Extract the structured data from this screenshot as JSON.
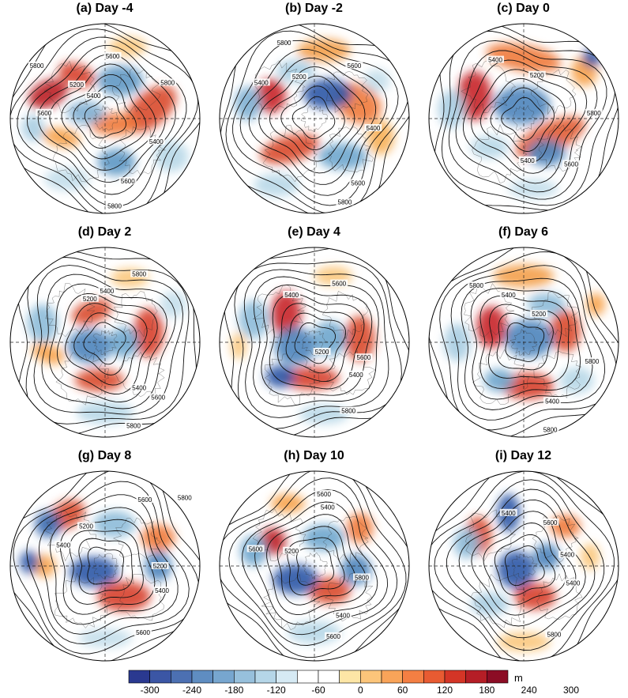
{
  "panels": [
    {
      "title": "(a) Day -4",
      "contour_labels": [
        {
          "t": "5800",
          "p": [
            0.14,
            0.22
          ]
        },
        {
          "t": "5600",
          "p": [
            0.54,
            0.17
          ]
        },
        {
          "t": "5200",
          "p": [
            0.35,
            0.32
          ]
        },
        {
          "t": "5400",
          "p": [
            0.44,
            0.38
          ]
        },
        {
          "t": "5800",
          "p": [
            0.83,
            0.31
          ]
        },
        {
          "t": "5600",
          "p": [
            0.18,
            0.47
          ]
        },
        {
          "t": "5400",
          "p": [
            0.77,
            0.62
          ]
        },
        {
          "t": "5600",
          "p": [
            0.62,
            0.83
          ]
        },
        {
          "t": "5800",
          "p": [
            0.55,
            0.96
          ]
        }
      ],
      "blobs": [
        [
          0.2,
          0.37,
          0.11,
          0.07,
          -25,
          "#ba1e24"
        ],
        [
          0.35,
          0.27,
          0.1,
          0.06,
          20,
          "#d7402b"
        ],
        [
          0.74,
          0.45,
          0.16,
          0.09,
          -40,
          "#d94a2c"
        ],
        [
          0.55,
          0.53,
          0.13,
          0.06,
          0,
          "#ef7a3c"
        ],
        [
          0.27,
          0.6,
          0.1,
          0.05,
          10,
          "#f7a24b"
        ],
        [
          0.4,
          0.47,
          0.1,
          0.06,
          0,
          "#7faed0"
        ],
        [
          0.58,
          0.3,
          0.12,
          0.08,
          0,
          "#5f98c4"
        ],
        [
          0.56,
          0.73,
          0.1,
          0.07,
          0,
          "#5c97c4"
        ],
        [
          0.12,
          0.55,
          0.06,
          0.07,
          0,
          "#a9cde2"
        ],
        [
          0.85,
          0.7,
          0.09,
          0.08,
          0,
          "#b8d8e8"
        ],
        [
          0.3,
          0.82,
          0.12,
          0.06,
          0,
          "#c3deeb"
        ],
        [
          0.62,
          0.12,
          0.1,
          0.05,
          0,
          "#fbc77b"
        ]
      ]
    },
    {
      "title": "(b) Day -2",
      "contour_labels": [
        {
          "t": "5800",
          "p": [
            0.34,
            0.1
          ]
        },
        {
          "t": "5600",
          "p": [
            0.71,
            0.22
          ]
        },
        {
          "t": "5400",
          "p": [
            0.22,
            0.31
          ]
        },
        {
          "t": "5200",
          "p": [
            0.42,
            0.28
          ]
        },
        {
          "t": "5400",
          "p": [
            0.81,
            0.55
          ]
        },
        {
          "t": "5600",
          "p": [
            0.73,
            0.84
          ]
        },
        {
          "t": "5800",
          "p": [
            0.66,
            0.94
          ]
        }
      ],
      "blobs": [
        [
          0.27,
          0.38,
          0.08,
          0.09,
          0,
          "#c7262a"
        ],
        [
          0.37,
          0.66,
          0.16,
          0.07,
          -15,
          "#d94a2c"
        ],
        [
          0.73,
          0.42,
          0.13,
          0.1,
          30,
          "#ef7a3c"
        ],
        [
          0.55,
          0.14,
          0.14,
          0.06,
          0,
          "#f3a04b"
        ],
        [
          0.85,
          0.6,
          0.07,
          0.09,
          0,
          "#f7b057"
        ],
        [
          0.57,
          0.37,
          0.13,
          0.08,
          0,
          "#2f57a6"
        ],
        [
          0.15,
          0.42,
          0.07,
          0.09,
          0,
          "#7fb0d3"
        ],
        [
          0.65,
          0.7,
          0.13,
          0.07,
          0,
          "#6ea6cd"
        ],
        [
          0.4,
          0.25,
          0.1,
          0.06,
          0,
          "#a9cde2"
        ],
        [
          0.3,
          0.85,
          0.12,
          0.06,
          0,
          "#b8d8e8"
        ],
        [
          0.83,
          0.3,
          0.07,
          0.06,
          0,
          "#c3deeb"
        ]
      ]
    },
    {
      "title": "(c) Day 0",
      "contour_labels": [
        {
          "t": "5400",
          "p": [
            0.35,
            0.19
          ]
        },
        {
          "t": "5200",
          "p": [
            0.57,
            0.27
          ]
        },
        {
          "t": "5800",
          "p": [
            0.87,
            0.47
          ]
        },
        {
          "t": "5600",
          "p": [
            0.75,
            0.74
          ]
        },
        {
          "t": "5400",
          "p": [
            0.52,
            0.72
          ]
        }
      ],
      "blobs": [
        [
          0.24,
          0.38,
          0.09,
          0.13,
          0,
          "#c7262a"
        ],
        [
          0.64,
          0.6,
          0.2,
          0.08,
          -25,
          "#e15d33"
        ],
        [
          0.5,
          0.18,
          0.2,
          0.07,
          10,
          "#ef7a3c"
        ],
        [
          0.82,
          0.25,
          0.07,
          0.08,
          0,
          "#f7a24b"
        ],
        [
          0.49,
          0.43,
          0.15,
          0.1,
          0,
          "#4d84bb"
        ],
        [
          0.62,
          0.68,
          0.1,
          0.07,
          0,
          "#4d84bb"
        ],
        [
          0.86,
          0.18,
          0.05,
          0.05,
          0,
          "#2f57a6"
        ],
        [
          0.12,
          0.45,
          0.07,
          0.1,
          0,
          "#a9cde2"
        ],
        [
          0.32,
          0.65,
          0.1,
          0.06,
          0,
          "#b8d8e8"
        ],
        [
          0.55,
          0.87,
          0.13,
          0.05,
          0,
          "#c3deeb"
        ]
      ]
    },
    {
      "title": "(d) Day 2",
      "contour_labels": [
        {
          "t": "5800",
          "p": [
            0.68,
            0.14
          ]
        },
        {
          "t": "5400",
          "p": [
            0.51,
            0.23
          ]
        },
        {
          "t": "5200",
          "p": [
            0.42,
            0.27
          ]
        },
        {
          "t": "5400",
          "p": [
            0.68,
            0.74
          ]
        },
        {
          "t": "5600",
          "p": [
            0.78,
            0.79
          ]
        },
        {
          "t": "5800",
          "p": [
            0.65,
            0.94
          ]
        }
      ],
      "blobs": [
        [
          0.43,
          0.34,
          0.11,
          0.06,
          -20,
          "#d94a2c"
        ],
        [
          0.73,
          0.45,
          0.08,
          0.13,
          0,
          "#d7402b"
        ],
        [
          0.47,
          0.7,
          0.13,
          0.06,
          0,
          "#d94a2c"
        ],
        [
          0.2,
          0.56,
          0.09,
          0.05,
          20,
          "#f7a24b"
        ],
        [
          0.63,
          0.16,
          0.1,
          0.05,
          0,
          "#fbc77b"
        ],
        [
          0.42,
          0.52,
          0.12,
          0.09,
          0,
          "#4d84bb"
        ],
        [
          0.6,
          0.5,
          0.08,
          0.08,
          0,
          "#6ea6cd"
        ],
        [
          0.17,
          0.4,
          0.08,
          0.1,
          0,
          "#8dbbd9"
        ],
        [
          0.5,
          0.87,
          0.15,
          0.06,
          0,
          "#b8d8e8"
        ],
        [
          0.86,
          0.3,
          0.07,
          0.07,
          0,
          "#c3deeb"
        ]
      ]
    },
    {
      "title": "(e) Day 4",
      "contour_labels": [
        {
          "t": "5600",
          "p": [
            0.63,
            0.19
          ]
        },
        {
          "t": "5400",
          "p": [
            0.38,
            0.25
          ]
        },
        {
          "t": "5200",
          "p": [
            0.54,
            0.55
          ]
        },
        {
          "t": "5400",
          "p": [
            0.72,
            0.67
          ]
        },
        {
          "t": "5600",
          "p": [
            0.76,
            0.58
          ]
        },
        {
          "t": "5800",
          "p": [
            0.68,
            0.86
          ]
        }
      ],
      "blobs": [
        [
          0.35,
          0.35,
          0.08,
          0.12,
          0,
          "#c7262a"
        ],
        [
          0.74,
          0.48,
          0.08,
          0.12,
          0,
          "#d94a2c"
        ],
        [
          0.48,
          0.69,
          0.15,
          0.06,
          0,
          "#d7402b"
        ],
        [
          0.6,
          0.15,
          0.1,
          0.05,
          0,
          "#fbc77b"
        ],
        [
          0.1,
          0.52,
          0.04,
          0.07,
          0,
          "#fbc77b"
        ],
        [
          0.4,
          0.52,
          0.11,
          0.1,
          0,
          "#4d84bb"
        ],
        [
          0.32,
          0.68,
          0.08,
          0.06,
          0,
          "#2f57a6"
        ],
        [
          0.58,
          0.48,
          0.09,
          0.09,
          0,
          "#6ea6cd"
        ],
        [
          0.18,
          0.38,
          0.08,
          0.1,
          0,
          "#8dbbd9"
        ],
        [
          0.55,
          0.88,
          0.13,
          0.05,
          0,
          "#b8d8e8"
        ]
      ]
    },
    {
      "title": "(f) Day 6",
      "contour_labels": [
        {
          "t": "5800",
          "p": [
            0.25,
            0.2
          ]
        },
        {
          "t": "5400",
          "p": [
            0.42,
            0.25
          ]
        },
        {
          "t": "5200",
          "p": [
            0.58,
            0.35
          ]
        },
        {
          "t": "5400",
          "p": [
            0.65,
            0.81
          ]
        },
        {
          "t": "5800",
          "p": [
            0.86,
            0.6
          ]
        },
        {
          "t": "5800",
          "p": [
            0.64,
            0.96
          ]
        }
      ],
      "blobs": [
        [
          0.33,
          0.42,
          0.08,
          0.11,
          0,
          "#c7262a"
        ],
        [
          0.72,
          0.44,
          0.08,
          0.11,
          0,
          "#d94a2c"
        ],
        [
          0.52,
          0.73,
          0.14,
          0.07,
          0,
          "#d7402b"
        ],
        [
          0.5,
          0.15,
          0.16,
          0.06,
          0,
          "#f3a04b"
        ],
        [
          0.88,
          0.3,
          0.05,
          0.06,
          0,
          "#f7a24b"
        ],
        [
          0.53,
          0.48,
          0.13,
          0.1,
          0,
          "#4d84bb"
        ],
        [
          0.37,
          0.7,
          0.08,
          0.06,
          0,
          "#6ea6cd"
        ],
        [
          0.62,
          0.3,
          0.1,
          0.06,
          0,
          "#8dbbd9"
        ],
        [
          0.15,
          0.5,
          0.07,
          0.1,
          0,
          "#a9cde2"
        ],
        [
          0.78,
          0.7,
          0.09,
          0.07,
          0,
          "#b8d8e8"
        ]
      ]
    },
    {
      "title": "(g) Day 8",
      "contour_labels": [
        {
          "t": "5800",
          "p": [
            0.92,
            0.14
          ]
        },
        {
          "t": "5600",
          "p": [
            0.71,
            0.15
          ]
        },
        {
          "t": "5400",
          "p": [
            0.28,
            0.39
          ]
        },
        {
          "t": "5200",
          "p": [
            0.4,
            0.29
          ]
        },
        {
          "t": "5200",
          "p": [
            0.79,
            0.5
          ]
        },
        {
          "t": "5400",
          "p": [
            0.8,
            0.63
          ]
        },
        {
          "t": "5600",
          "p": [
            0.7,
            0.85
          ]
        }
      ],
      "blobs": [
        [
          0.3,
          0.23,
          0.1,
          0.07,
          -30,
          "#d94a2c"
        ],
        [
          0.6,
          0.66,
          0.14,
          0.08,
          0,
          "#d7402b"
        ],
        [
          0.78,
          0.35,
          0.09,
          0.07,
          0,
          "#ef7a3c"
        ],
        [
          0.18,
          0.5,
          0.06,
          0.06,
          0,
          "#f7a24b"
        ],
        [
          0.2,
          0.28,
          0.07,
          0.07,
          0,
          "#3a6bb0"
        ],
        [
          0.1,
          0.48,
          0.05,
          0.06,
          0,
          "#2f57a6"
        ],
        [
          0.44,
          0.53,
          0.13,
          0.08,
          0,
          "#2f57a6"
        ],
        [
          0.78,
          0.5,
          0.07,
          0.08,
          0,
          "#4d84bb"
        ],
        [
          0.55,
          0.28,
          0.11,
          0.07,
          0,
          "#8dbbd9"
        ],
        [
          0.5,
          0.88,
          0.14,
          0.05,
          0,
          "#c3deeb"
        ]
      ]
    },
    {
      "title": "(h) Day 10",
      "contour_labels": [
        {
          "t": "5600",
          "p": [
            0.55,
            0.12
          ]
        },
        {
          "t": "5400",
          "p": [
            0.57,
            0.19
          ]
        },
        {
          "t": "5600",
          "p": [
            0.19,
            0.41
          ]
        },
        {
          "t": "5200",
          "p": [
            0.38,
            0.42
          ]
        },
        {
          "t": "5800",
          "p": [
            0.75,
            0.56
          ]
        },
        {
          "t": "5400",
          "p": [
            0.65,
            0.76
          ]
        },
        {
          "t": "5600",
          "p": [
            0.6,
            0.87
          ]
        }
      ],
      "blobs": [
        [
          0.28,
          0.37,
          0.07,
          0.07,
          0,
          "#ba1e24"
        ],
        [
          0.58,
          0.63,
          0.11,
          0.07,
          0,
          "#d94a2c"
        ],
        [
          0.74,
          0.3,
          0.07,
          0.08,
          0,
          "#ef7a3c"
        ],
        [
          0.36,
          0.17,
          0.09,
          0.05,
          0,
          "#f7a24b"
        ],
        [
          0.4,
          0.57,
          0.12,
          0.08,
          0,
          "#2f57a6"
        ],
        [
          0.18,
          0.42,
          0.07,
          0.08,
          0,
          "#6ea6cd"
        ],
        [
          0.72,
          0.52,
          0.08,
          0.08,
          0,
          "#4d84bb"
        ],
        [
          0.55,
          0.35,
          0.11,
          0.07,
          0,
          "#6ea6cd"
        ],
        [
          0.5,
          0.85,
          0.14,
          0.06,
          0,
          "#b8d8e8"
        ]
      ]
    },
    {
      "title": "(i) Day 12",
      "contour_labels": [
        {
          "t": "5400",
          "p": [
            0.42,
            0.22
          ]
        },
        {
          "t": "5600",
          "p": [
            0.64,
            0.27
          ]
        },
        {
          "t": "5400",
          "p": [
            0.73,
            0.44
          ]
        },
        {
          "t": "5400",
          "p": [
            0.76,
            0.59
          ]
        },
        {
          "t": "5800",
          "p": [
            0.66,
            0.86
          ]
        }
      ],
      "blobs": [
        [
          0.26,
          0.34,
          0.07,
          0.1,
          0,
          "#d94a2c"
        ],
        [
          0.56,
          0.66,
          0.11,
          0.07,
          0,
          "#d7402b"
        ],
        [
          0.72,
          0.29,
          0.08,
          0.06,
          0,
          "#ef7a3c"
        ],
        [
          0.85,
          0.45,
          0.05,
          0.07,
          0,
          "#fbc77b"
        ],
        [
          0.5,
          0.9,
          0.14,
          0.05,
          0,
          "#fbc77b"
        ],
        [
          0.42,
          0.22,
          0.06,
          0.1,
          0,
          "#2f57a6"
        ],
        [
          0.46,
          0.52,
          0.1,
          0.1,
          0,
          "#2f57a6"
        ],
        [
          0.62,
          0.45,
          0.07,
          0.07,
          0,
          "#4d84bb"
        ],
        [
          0.2,
          0.38,
          0.07,
          0.08,
          0,
          "#8dbbd9"
        ],
        [
          0.32,
          0.7,
          0.1,
          0.06,
          0,
          "#a9cde2"
        ]
      ]
    }
  ],
  "colorbar": {
    "colors": [
      "#2a3990",
      "#3b56a5",
      "#4c70b2",
      "#5f8dc1",
      "#77a6cf",
      "#97c0dc",
      "#b5d6e8",
      "#d6eaf4",
      "#ffffff",
      "#ffffff",
      "#fde6a6",
      "#fcc57a",
      "#f9a459",
      "#f47f43",
      "#e85b32",
      "#d43526",
      "#b51e26",
      "#8c0d25"
    ],
    "labels": [
      "-300",
      "-240",
      "-180",
      "-120",
      "-60",
      "0",
      "60",
      "120",
      "180",
      "240",
      "300"
    ],
    "unit": "m"
  }
}
